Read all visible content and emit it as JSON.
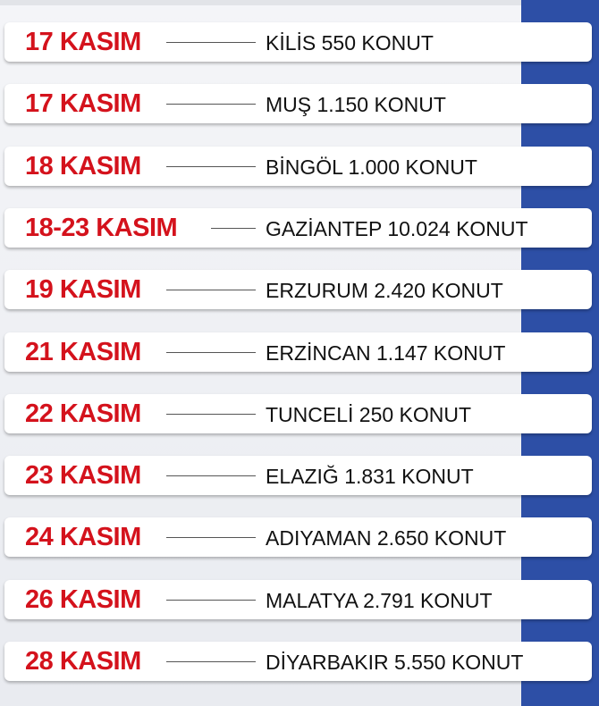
{
  "colors": {
    "date": "#d4121c",
    "band": "#2d4fa6",
    "text": "#111111"
  },
  "rows": [
    {
      "date": "17 KASIM",
      "place": "KİLİS 550 KONUT"
    },
    {
      "date": "17 KASIM",
      "place": "MUŞ 1.150 KONUT"
    },
    {
      "date": "18 KASIM",
      "place": "BİNGÖL 1.000 KONUT"
    },
    {
      "date": "18-23 KASIM",
      "place": "GAZİANTEP 10.024 KONUT"
    },
    {
      "date": "19 KASIM",
      "place": "ERZURUM 2.420 KONUT"
    },
    {
      "date": "21 KASIM",
      "place": "ERZİNCAN 1.147 KONUT"
    },
    {
      "date": "22 KASIM",
      "place": "TUNCELİ 250 KONUT"
    },
    {
      "date": "23 KASIM",
      "place": "ELAZIĞ 1.831 KONUT"
    },
    {
      "date": "24 KASIM",
      "place": "ADIYAMAN 2.650 KONUT"
    },
    {
      "date": "26 KASIM",
      "place": "MALATYA 2.791 KONUT"
    },
    {
      "date": "28 KASIM",
      "place": "DİYARBAKIR 5.550 KONUT"
    }
  ]
}
